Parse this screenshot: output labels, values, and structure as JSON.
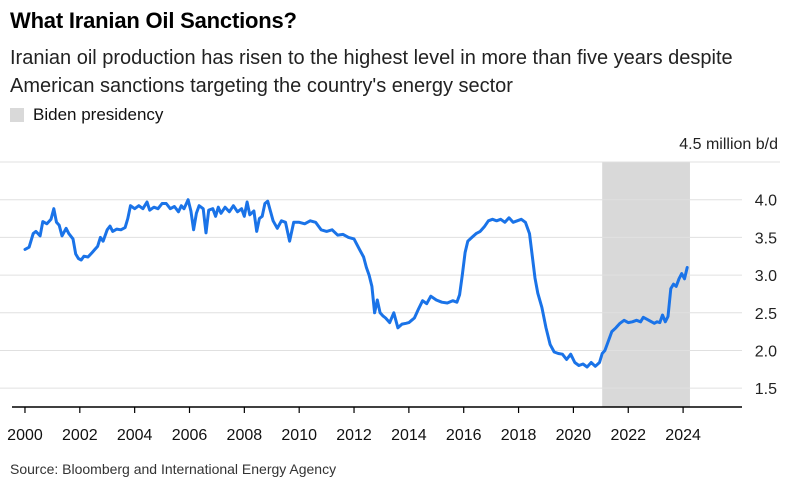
{
  "title": "What Iranian Oil Sanctions?",
  "subtitle": "Iranian oil production has risen to the highest level in more than five years despite American sanctions targeting the country's energy sector",
  "legend": {
    "biden_label": "Biden presidency"
  },
  "source": "Source: Bloomberg and International Energy Agency",
  "colors": {
    "line": "#1a73e8",
    "shade": "#d9d9d9",
    "grid": "#e0e0e0",
    "axis": "#000000"
  },
  "chart_data": {
    "type": "line",
    "unit_label": "4.5 million b/d",
    "xlim": [
      1999.6,
      2025.2
    ],
    "ylim": [
      1.25,
      4.5
    ],
    "x_ticks": [
      2000,
      2002,
      2004,
      2006,
      2008,
      2010,
      2012,
      2014,
      2016,
      2018,
      2020,
      2022,
      2024
    ],
    "x_tick_labels": [
      "2000",
      "2002",
      "2004",
      "2006",
      "2008",
      "2010",
      "2012",
      "2014",
      "2016",
      "2018",
      "2020",
      "2022",
      "2024"
    ],
    "y_ticks": [
      1.5,
      2.0,
      2.5,
      3.0,
      3.5,
      4.0
    ],
    "y_tick_labels": [
      "1.5",
      "2.0",
      "2.5",
      "3.0",
      "3.5",
      "4.0"
    ],
    "grid": true,
    "shaded_regions": [
      {
        "label": "Biden presidency",
        "start": 2021.05,
        "end": 2024.25
      }
    ],
    "series": [
      {
        "x": [
          2000.0,
          2000.15,
          2000.3,
          2000.4,
          2000.55,
          2000.65,
          2000.8,
          2000.95,
          2001.05,
          2001.15,
          2001.25,
          2001.35,
          2001.5,
          2001.6,
          2001.75,
          2001.85,
          2001.95,
          2002.05,
          2002.15,
          2002.3,
          2002.45,
          2002.55,
          2002.65,
          2002.75,
          2002.85,
          2003.0,
          2003.1,
          2003.2,
          2003.35,
          2003.5,
          2003.65,
          2003.75,
          2003.85,
          2004.0,
          2004.15,
          2004.3,
          2004.45,
          2004.55,
          2004.7,
          2004.85,
          2005.0,
          2005.15,
          2005.3,
          2005.45,
          2005.6,
          2005.7,
          2005.8,
          2005.95,
          2006.05,
          2006.15,
          2006.25,
          2006.35,
          2006.5,
          2006.6,
          2006.7,
          2006.85,
          2006.95,
          2007.05,
          2007.15,
          2007.3,
          2007.45,
          2007.6,
          2007.75,
          2007.9,
          2008.0,
          2008.1,
          2008.2,
          2008.35,
          2008.45,
          2008.55,
          2008.65,
          2008.75,
          2008.85,
          2008.95,
          2009.05,
          2009.2,
          2009.35,
          2009.5,
          2009.65,
          2009.8,
          2010.0,
          2010.2,
          2010.4,
          2010.6,
          2010.8,
          2011.0,
          2011.2,
          2011.4,
          2011.6,
          2011.8,
          2012.0,
          2012.2,
          2012.35,
          2012.45,
          2012.55,
          2012.65,
          2012.75,
          2012.85,
          2012.95,
          2013.05,
          2013.15,
          2013.3,
          2013.45,
          2013.6,
          2013.75,
          2013.9,
          2014.0,
          2014.1,
          2014.2,
          2014.35,
          2014.5,
          2014.65,
          2014.8,
          2015.0,
          2015.2,
          2015.4,
          2015.6,
          2015.75,
          2015.85,
          2015.95,
          2016.05,
          2016.15,
          2016.3,
          2016.45,
          2016.6,
          2016.75,
          2016.9,
          2017.05,
          2017.2,
          2017.35,
          2017.5,
          2017.65,
          2017.8,
          2017.95,
          2018.1,
          2018.25,
          2018.4,
          2018.5,
          2018.6,
          2018.7,
          2018.85,
          2019.0,
          2019.15,
          2019.3,
          2019.45,
          2019.6,
          2019.75,
          2019.9,
          2020.05,
          2020.2,
          2020.35,
          2020.5,
          2020.65,
          2020.8,
          2020.95,
          2021.05,
          2021.15,
          2021.25,
          2021.4,
          2021.55,
          2021.7,
          2021.85,
          2022.0,
          2022.15,
          2022.3,
          2022.45,
          2022.55,
          2022.65,
          2022.8,
          2022.95,
          2023.05,
          2023.15,
          2023.25,
          2023.35,
          2023.45,
          2023.55,
          2023.65,
          2023.75,
          2023.85,
          2023.95,
          2024.05,
          2024.15
        ],
        "values": [
          3.34,
          3.37,
          3.55,
          3.58,
          3.52,
          3.71,
          3.68,
          3.74,
          3.88,
          3.7,
          3.66,
          3.52,
          3.62,
          3.55,
          3.48,
          3.28,
          3.22,
          3.2,
          3.25,
          3.24,
          3.3,
          3.34,
          3.38,
          3.5,
          3.45,
          3.6,
          3.65,
          3.58,
          3.61,
          3.6,
          3.63,
          3.75,
          3.92,
          3.88,
          3.92,
          3.88,
          3.97,
          3.86,
          3.9,
          3.88,
          3.95,
          3.95,
          3.88,
          3.91,
          3.84,
          3.92,
          3.88,
          4.0,
          3.85,
          3.6,
          3.82,
          3.92,
          3.88,
          3.56,
          3.86,
          3.88,
          3.78,
          3.9,
          3.82,
          3.9,
          3.84,
          3.92,
          3.84,
          3.88,
          3.78,
          3.97,
          3.8,
          3.85,
          3.58,
          3.75,
          3.78,
          3.95,
          3.98,
          3.85,
          3.72,
          3.62,
          3.72,
          3.7,
          3.45,
          3.7,
          3.7,
          3.68,
          3.72,
          3.7,
          3.6,
          3.58,
          3.6,
          3.53,
          3.54,
          3.5,
          3.48,
          3.34,
          3.24,
          3.1,
          3.0,
          2.85,
          2.5,
          2.67,
          2.5,
          2.46,
          2.43,
          2.37,
          2.5,
          2.3,
          2.35,
          2.36,
          2.37,
          2.4,
          2.43,
          2.55,
          2.66,
          2.62,
          2.72,
          2.67,
          2.64,
          2.63,
          2.66,
          2.64,
          2.74,
          3.0,
          3.3,
          3.45,
          3.5,
          3.55,
          3.58,
          3.64,
          3.72,
          3.74,
          3.72,
          3.74,
          3.7,
          3.76,
          3.7,
          3.72,
          3.74,
          3.7,
          3.55,
          3.25,
          2.96,
          2.76,
          2.57,
          2.3,
          2.08,
          1.98,
          1.96,
          1.95,
          1.88,
          1.95,
          1.84,
          1.8,
          1.82,
          1.78,
          1.84,
          1.79,
          1.84,
          1.96,
          2.0,
          2.1,
          2.25,
          2.3,
          2.36,
          2.4,
          2.37,
          2.38,
          2.4,
          2.38,
          2.44,
          2.42,
          2.39,
          2.36,
          2.38,
          2.37,
          2.47,
          2.38,
          2.45,
          2.82,
          2.88,
          2.85,
          2.95,
          3.02,
          2.95,
          3.1
        ]
      }
    ]
  }
}
